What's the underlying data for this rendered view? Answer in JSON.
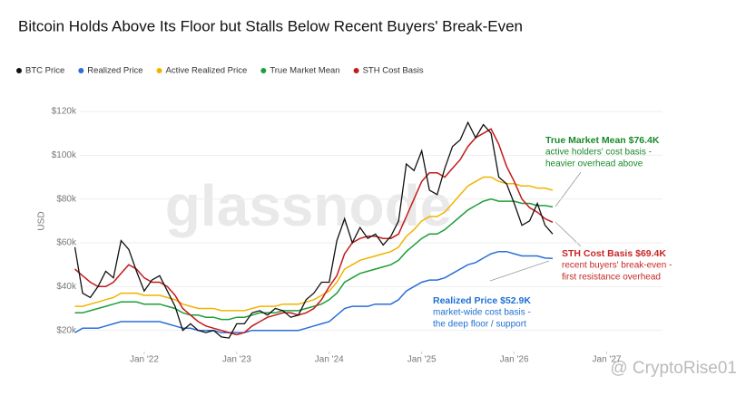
{
  "chart_data": {
    "type": "line",
    "title": "Bitcoin Holds Above Its Floor but Stalls Below Recent Buyers' Break-Even",
    "y_label": "USD",
    "watermark": "glassnode",
    "credit": "@ CryptoRise01",
    "x": [
      "2021-04",
      "2021-05",
      "2021-06",
      "2021-07",
      "2021-08",
      "2021-09",
      "2021-10",
      "2021-11",
      "2021-12",
      "2022-01",
      "2022-02",
      "2022-03",
      "2022-04",
      "2022-05",
      "2022-06",
      "2022-07",
      "2022-08",
      "2022-09",
      "2022-10",
      "2022-11",
      "2022-12",
      "2023-01",
      "2023-02",
      "2023-03",
      "2023-04",
      "2023-05",
      "2023-06",
      "2023-07",
      "2023-08",
      "2023-09",
      "2023-10",
      "2023-11",
      "2023-12",
      "2024-01",
      "2024-02",
      "2024-03",
      "2024-04",
      "2024-05",
      "2024-06",
      "2024-07",
      "2024-08",
      "2024-09",
      "2024-10",
      "2024-11",
      "2024-12",
      "2025-01",
      "2025-02",
      "2025-03",
      "2025-04",
      "2025-05",
      "2025-06",
      "2025-07",
      "2025-08",
      "2025-09",
      "2025-10",
      "2025-11",
      "2025-12",
      "2026-01",
      "2026-02",
      "2026-03",
      "2026-04",
      "2026-05",
      "2026-06"
    ],
    "xlim": [
      "2021-03",
      "2026-12"
    ],
    "xticks": [
      {
        "value": "2022-01",
        "label": "Jan '22"
      },
      {
        "value": "2023-01",
        "label": "Jan '23"
      },
      {
        "value": "2024-01",
        "label": "Jan '24"
      },
      {
        "value": "2025-01",
        "label": "Jan '25"
      },
      {
        "value": "2026-01",
        "label": "Jan '26"
      },
      {
        "value": "2027-01",
        "label": "Jan '27"
      }
    ],
    "ylim": [
      12,
      132
    ],
    "yticks": [
      {
        "value": 20,
        "label": "$20k"
      },
      {
        "value": 40,
        "label": "$40k"
      },
      {
        "value": 60,
        "label": "$60k"
      },
      {
        "value": 80,
        "label": "$80k"
      },
      {
        "value": 100,
        "label": "$100k"
      },
      {
        "value": 120,
        "label": "$120k"
      }
    ],
    "grid": true,
    "series": [
      {
        "name": "BTC Price",
        "color": "#111111",
        "values": [
          58,
          37,
          35,
          40,
          47,
          44,
          61,
          57,
          47,
          38,
          43,
          45,
          38,
          31,
          20,
          23,
          20,
          19,
          20,
          17,
          16.5,
          23,
          23,
          28,
          29,
          27,
          30,
          29,
          26,
          27,
          34,
          37,
          42,
          42,
          61,
          71,
          60,
          67,
          62,
          64,
          59,
          63,
          70,
          96,
          93,
          102,
          84,
          82,
          94,
          104,
          107,
          115,
          108,
          114,
          110,
          90,
          87,
          78,
          68,
          70,
          78,
          68,
          64
        ]
      },
      {
        "name": "Realized Price",
        "color": "#2a6fd6",
        "values": [
          19,
          21,
          21,
          21,
          22,
          23,
          24,
          24,
          24,
          24,
          24,
          24,
          23,
          22,
          21,
          21,
          20,
          20,
          20,
          19,
          19,
          19,
          19,
          20,
          20,
          20,
          20,
          20,
          20,
          20,
          21,
          22,
          23,
          24,
          27,
          30,
          31,
          31,
          31,
          32,
          32,
          32,
          34,
          38,
          40,
          42,
          43,
          43,
          44,
          46,
          48,
          50,
          51,
          53,
          55,
          56,
          56,
          55,
          54,
          54,
          54,
          53,
          52.9
        ]
      },
      {
        "name": "Active Realized Price",
        "color": "#f0b400",
        "values": [
          31,
          31,
          32,
          33,
          34,
          35,
          37,
          37,
          37,
          36,
          36,
          36,
          35,
          34,
          32,
          31,
          30,
          30,
          30,
          29,
          29,
          29,
          29,
          30,
          31,
          31,
          31,
          32,
          32,
          32,
          33,
          34,
          36,
          38,
          42,
          48,
          50,
          52,
          53,
          54,
          55,
          56,
          58,
          63,
          66,
          70,
          72,
          72,
          74,
          78,
          82,
          86,
          88,
          90,
          90,
          88,
          87,
          87,
          86,
          86,
          85,
          85,
          84
        ]
      },
      {
        "name": "True Market Mean",
        "color": "#1e9e3a",
        "values": [
          28,
          28,
          29,
          30,
          31,
          32,
          33,
          33,
          33,
          32,
          32,
          32,
          31,
          30,
          28,
          27,
          27,
          26,
          26,
          25,
          25,
          26,
          26,
          27,
          28,
          28,
          28,
          29,
          29,
          29,
          30,
          31,
          32,
          34,
          37,
          42,
          44,
          46,
          47,
          48,
          49,
          50,
          52,
          56,
          59,
          62,
          64,
          64,
          66,
          69,
          72,
          75,
          77,
          79,
          80,
          79,
          79,
          79,
          78,
          78,
          77,
          77,
          76.4
        ]
      },
      {
        "name": "STH Cost Basis",
        "color": "#c41a1a",
        "values": [
          48,
          45,
          42,
          40,
          40,
          42,
          46,
          50,
          48,
          44,
          42,
          42,
          40,
          36,
          30,
          27,
          24,
          22,
          21,
          20,
          19,
          18,
          19,
          22,
          24,
          26,
          27,
          28,
          28,
          27,
          28,
          30,
          34,
          40,
          45,
          55,
          60,
          62,
          63,
          63,
          62,
          62,
          64,
          72,
          80,
          88,
          92,
          92,
          90,
          94,
          98,
          104,
          108,
          110,
          112,
          105,
          95,
          88,
          80,
          76,
          74,
          71,
          69.4
        ]
      }
    ],
    "annotations": [
      {
        "title": "True Market Mean $76.4K",
        "lines": [
          "active holders' cost basis -",
          "heavier overhead above"
        ],
        "color": "#1a8a2a"
      },
      {
        "title": "STH Cost Basis $69.4K",
        "lines": [
          "recent buyers' break-even -",
          "first resistance overhead"
        ],
        "color": "#c62828"
      },
      {
        "title": "Realized Price $52.9K",
        "lines": [
          "market-wide cost basis -",
          "the deep floor / support"
        ],
        "color": "#1f6fd1"
      }
    ]
  }
}
